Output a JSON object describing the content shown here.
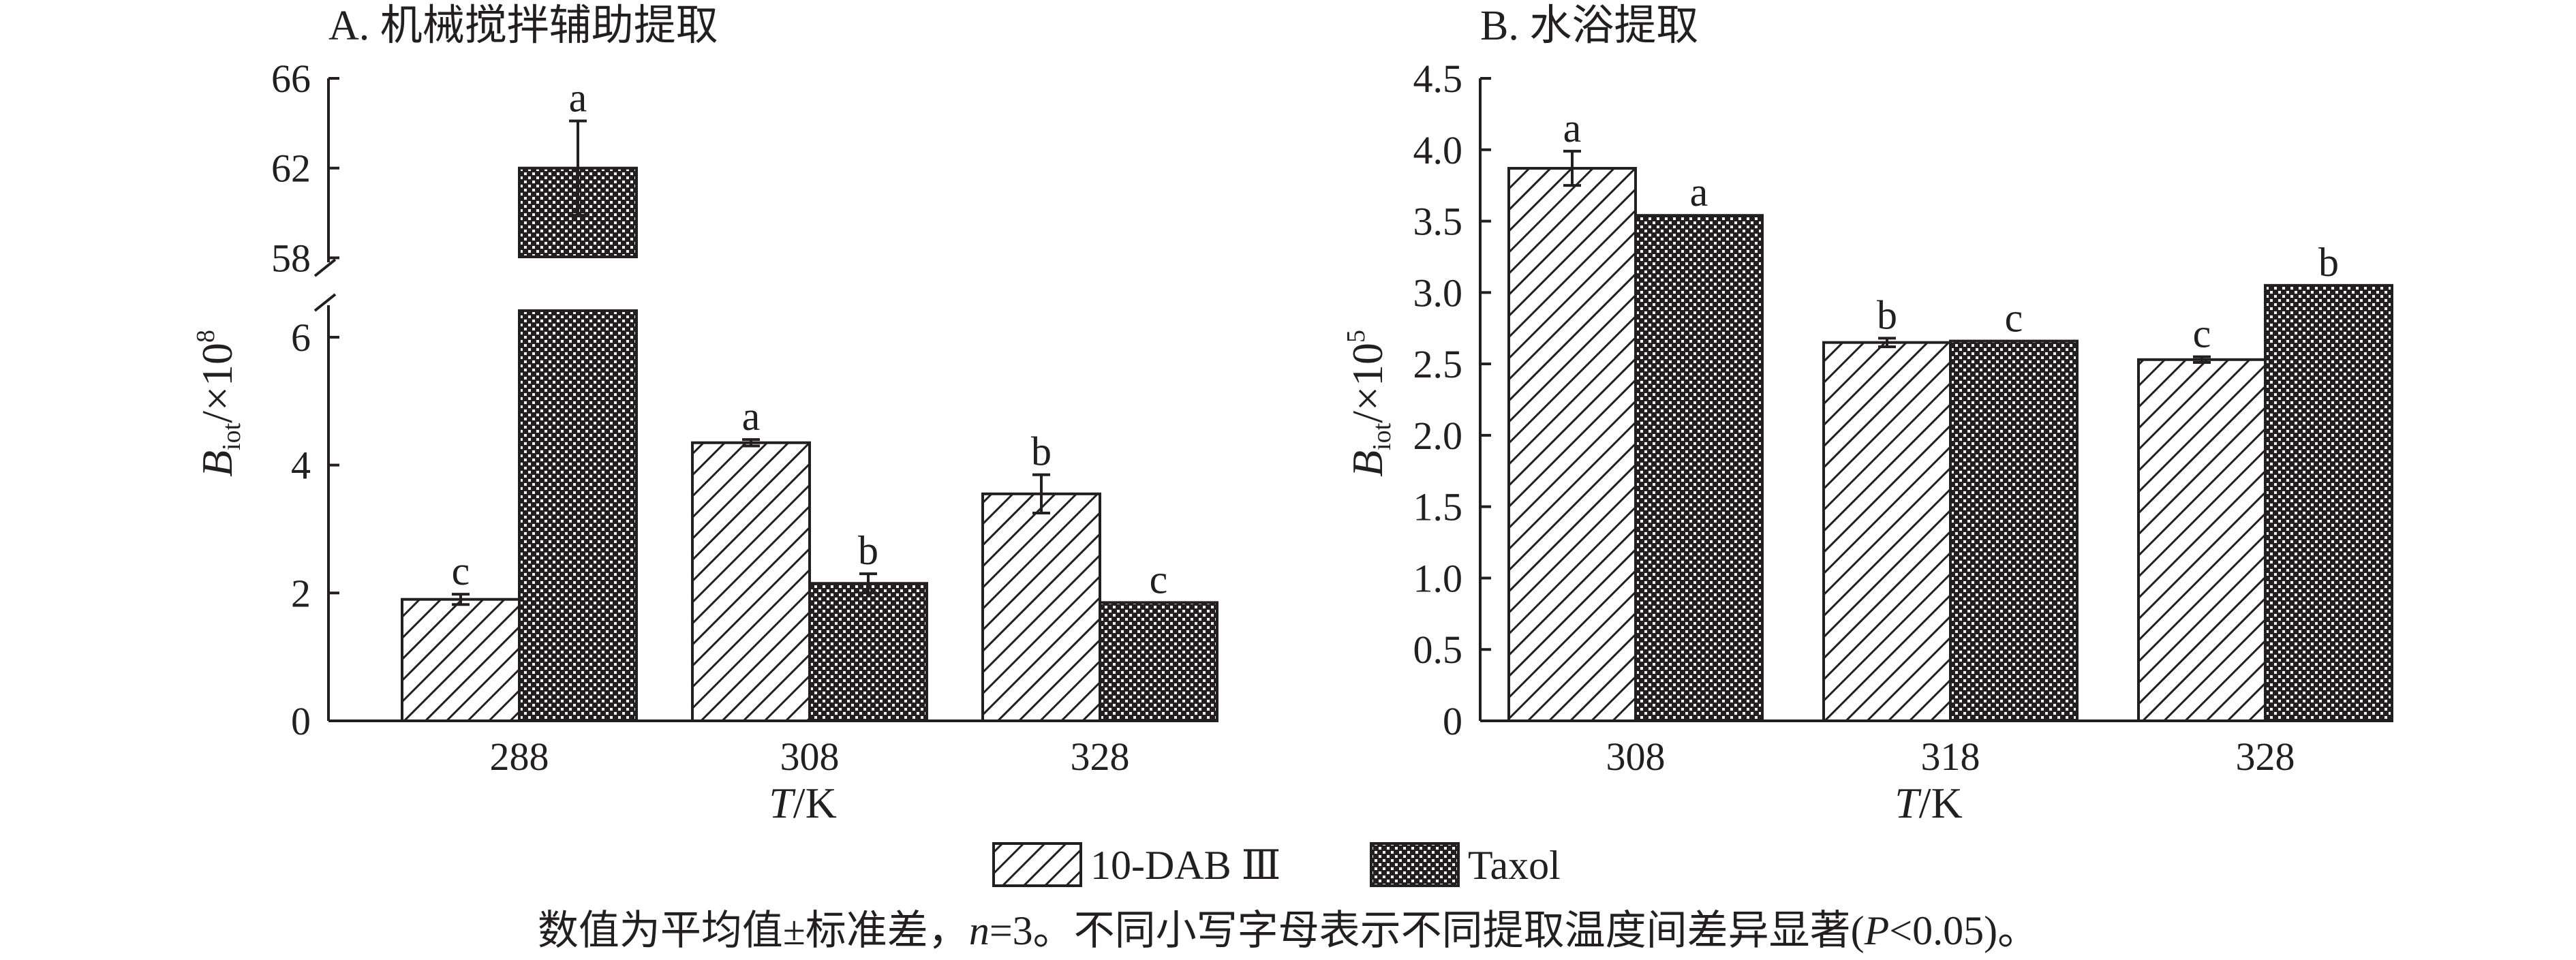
{
  "colors": {
    "ink": "#231f20",
    "background": "#ffffff"
  },
  "legend": {
    "items": [
      {
        "label": "10-DAB Ⅲ",
        "pattern": "diagonal-hatch"
      },
      {
        "label": "Taxol",
        "pattern": "cross-hatch"
      }
    ]
  },
  "footnote": {
    "prefix": "数值为平均值±标准差，",
    "n_var": "n",
    "n_rest": "=3。不同小写字母表示不同提取温度间差异显著(",
    "p_var": "P",
    "suffix": "<0.05)。"
  },
  "chart_data": [
    {
      "type": "bar",
      "title": "A. 机械搅拌辅助提取",
      "xlabel_var": "T",
      "xlabel_unit": "/K",
      "ylabel_var": "B",
      "ylabel_sub": "iot",
      "ylabel_unit": "/×10",
      "ylabel_exp": "8",
      "categories": [
        "288",
        "308",
        "328"
      ],
      "broken_axis": true,
      "ylim_lower": [
        0,
        6.5
      ],
      "ylim_upper": [
        57.8,
        66
      ],
      "yticks_lower": [
        "0",
        "2",
        "4",
        "6"
      ],
      "yticks_upper": [
        "58",
        "62",
        "66"
      ],
      "series": [
        {
          "name": "10-DAB Ⅲ",
          "values": [
            1.9,
            4.35,
            3.55
          ],
          "errors": [
            0.08,
            0.05,
            0.3
          ],
          "letters": [
            "c",
            "a",
            "b"
          ]
        },
        {
          "name": "Taxol",
          "values": [
            62.0,
            2.15,
            1.85
          ],
          "errors": [
            2.1,
            0.15,
            0.0
          ],
          "letters": [
            "a",
            "b",
            "c"
          ]
        }
      ]
    },
    {
      "type": "bar",
      "title": "B. 水浴提取",
      "xlabel_var": "T",
      "xlabel_unit": "/K",
      "ylabel_var": "B",
      "ylabel_sub": "iot",
      "ylabel_unit": "/×10",
      "ylabel_exp": "5",
      "categories": [
        "308",
        "318",
        "328"
      ],
      "broken_axis": false,
      "ylim": [
        0,
        4.5
      ],
      "yticks": [
        "0",
        "0.5",
        "1.0",
        "1.5",
        "2.0",
        "2.5",
        "3.0",
        "3.5",
        "4.0",
        "4.5"
      ],
      "series": [
        {
          "name": "10-DAB Ⅲ",
          "values": [
            3.87,
            2.65,
            2.53
          ],
          "errors": [
            0.12,
            0.03,
            0.02
          ],
          "letters": [
            "a",
            "b",
            "c"
          ]
        },
        {
          "name": "Taxol",
          "values": [
            3.54,
            2.66,
            3.05
          ],
          "errors": [
            0.0,
            0.0,
            0.0
          ],
          "letters": [
            "a",
            "c",
            "b"
          ]
        }
      ]
    }
  ]
}
